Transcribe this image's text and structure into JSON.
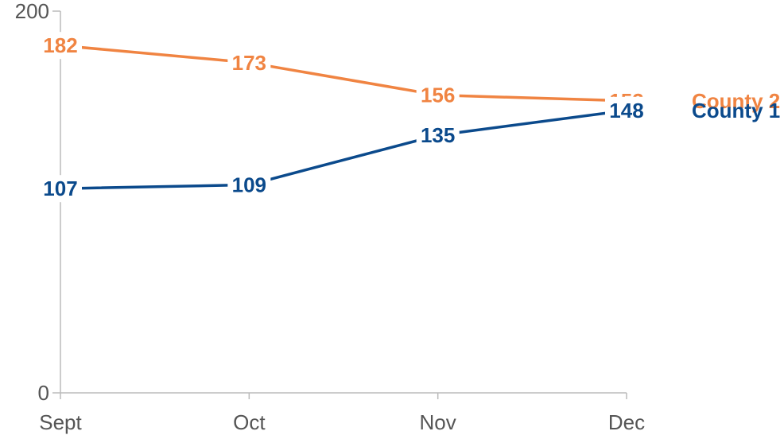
{
  "chart_data": {
    "type": "line",
    "categories": [
      "Sept",
      "Oct",
      "Nov",
      "Dec"
    ],
    "series": [
      {
        "name": "County 2",
        "values": [
          182,
          173,
          156,
          153
        ],
        "color": "#F08442"
      },
      {
        "name": "County 1",
        "values": [
          107,
          109,
          135,
          148
        ],
        "color": "#0B4A8C"
      }
    ],
    "ylim": [
      0,
      200
    ],
    "yticks": [
      "0",
      "200"
    ],
    "grid": false,
    "legend": "right (end of lines)",
    "title": "",
    "xlabel": "",
    "ylabel": ""
  }
}
